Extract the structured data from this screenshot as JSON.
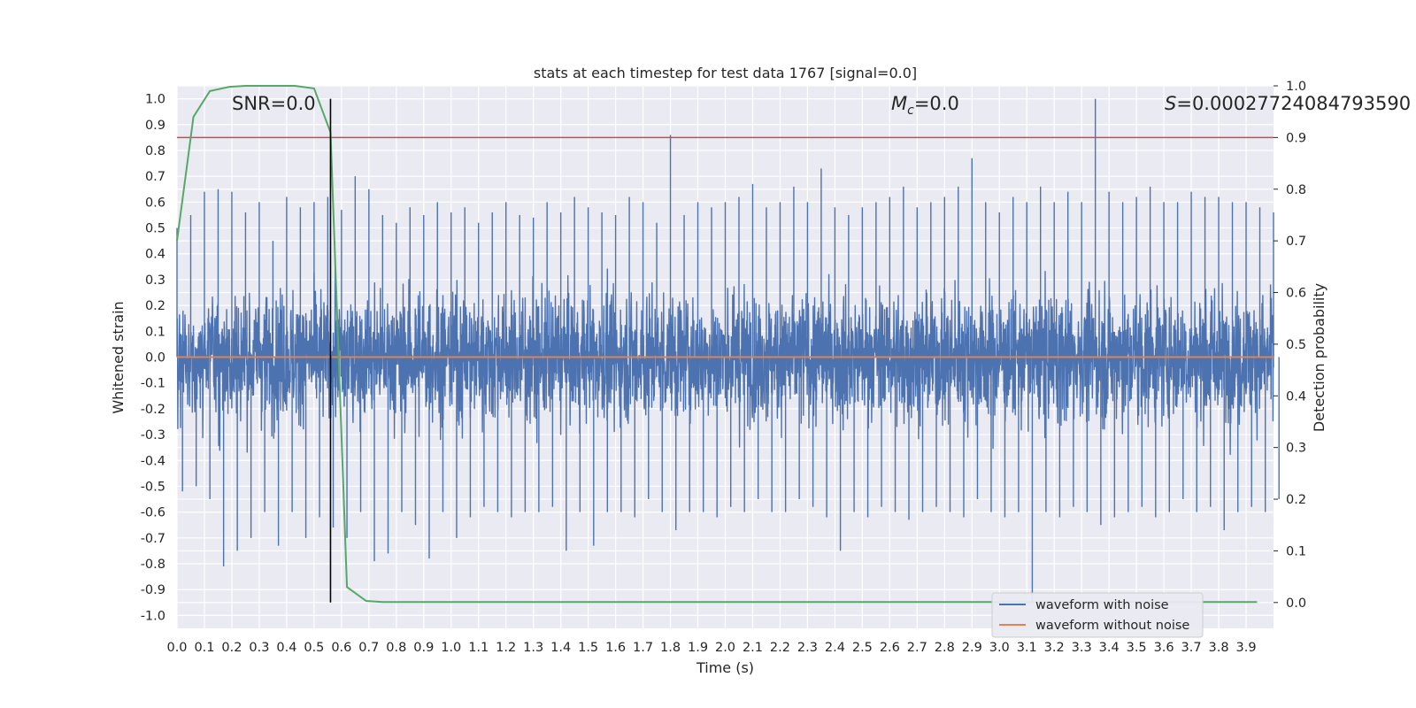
{
  "chart_data": {
    "type": "line",
    "title": "stats at each timestep for test data 1767 [signal=0.0]",
    "xlabel": "Time (s)",
    "ylabel": "Whitened strain",
    "ylabel_right": "Detection probability",
    "xlim": [
      0.0,
      4.0
    ],
    "ylim": [
      -1.05,
      1.05
    ],
    "ylim_right": [
      -0.05,
      1.0
    ],
    "x_ticks": [
      "0.0",
      "0.1",
      "0.2",
      "0.3",
      "0.4",
      "0.5",
      "0.6",
      "0.7",
      "0.8",
      "0.9",
      "1.0",
      "1.1",
      "1.2",
      "1.3",
      "1.4",
      "1.5",
      "1.6",
      "1.7",
      "1.8",
      "1.9",
      "2.0",
      "2.1",
      "2.2",
      "2.3",
      "2.4",
      "2.5",
      "2.6",
      "2.7",
      "2.8",
      "2.9",
      "3.0",
      "3.1",
      "3.2",
      "3.3",
      "3.4",
      "3.5",
      "3.6",
      "3.7",
      "3.8",
      "3.9"
    ],
    "y_ticks": [
      "1.0",
      "0.9",
      "0.8",
      "0.7",
      "0.6",
      "0.5",
      "0.4",
      "0.3",
      "0.2",
      "0.1",
      "0.0",
      "-0.1",
      "-0.2",
      "-0.3",
      "-0.4",
      "-0.5",
      "-0.6",
      "-0.7",
      "-0.8",
      "-0.9",
      "-1.0"
    ],
    "y_ticks_right": [
      "1.0",
      "0.9",
      "0.8",
      "0.7",
      "0.6",
      "0.5",
      "0.4",
      "0.3",
      "0.2",
      "0.1",
      "0.0"
    ],
    "grid": true,
    "legend_position": "bottom-right",
    "annotations": {
      "snr": "SNR=0.0",
      "mc_symbol": "M",
      "mc_sub": "c",
      "mc_value": "=0.0",
      "s_symbol": "S",
      "s_value": "=0.00027724084793590"
    },
    "threshold": 0.9,
    "vertical_marker_x": 0.56,
    "series": [
      {
        "name": "waveform with noise",
        "color": "#4c72b0",
        "axis": "left",
        "envelope_x": [
          0.0,
          0.05,
          0.1,
          0.15,
          0.2,
          0.25,
          0.3,
          0.35,
          0.4,
          0.45,
          0.5,
          0.55,
          0.6,
          0.65,
          0.7,
          0.75,
          0.8,
          0.85,
          0.9,
          0.95,
          1.0,
          1.05,
          1.1,
          1.15,
          1.2,
          1.25,
          1.3,
          1.35,
          1.4,
          1.45,
          1.5,
          1.55,
          1.6,
          1.65,
          1.7,
          1.75,
          1.8,
          1.85,
          1.9,
          1.95,
          2.0,
          2.05,
          2.1,
          2.15,
          2.2,
          2.25,
          2.3,
          2.35,
          2.4,
          2.45,
          2.5,
          2.55,
          2.6,
          2.65,
          2.7,
          2.75,
          2.8,
          2.85,
          2.9,
          2.95,
          3.0,
          3.05,
          3.1,
          3.15,
          3.2,
          3.25,
          3.3,
          3.35,
          3.4,
          3.45,
          3.5,
          3.55,
          3.6,
          3.65,
          3.7,
          3.75,
          3.8,
          3.85,
          3.9,
          3.95,
          4.0
        ],
        "envelope_max": [
          0.5,
          0.55,
          0.64,
          0.65,
          0.64,
          0.56,
          0.6,
          0.45,
          0.62,
          0.58,
          0.6,
          0.62,
          0.57,
          0.7,
          0.65,
          0.55,
          0.52,
          0.58,
          0.55,
          0.6,
          0.56,
          0.58,
          0.52,
          0.56,
          0.6,
          0.55,
          0.54,
          0.6,
          0.56,
          0.62,
          0.58,
          0.56,
          0.55,
          0.62,
          0.6,
          0.52,
          0.86,
          0.55,
          0.6,
          0.58,
          0.6,
          0.62,
          0.67,
          0.58,
          0.6,
          0.66,
          0.6,
          0.73,
          0.58,
          0.55,
          0.58,
          0.6,
          0.62,
          0.66,
          0.58,
          0.6,
          0.62,
          0.66,
          0.77,
          0.6,
          0.56,
          0.62,
          0.6,
          0.66,
          0.6,
          0.64,
          0.6,
          1.0,
          0.64,
          0.6,
          0.62,
          0.66,
          0.6,
          0.6,
          0.64,
          0.62,
          0.62,
          0.6,
          0.6,
          0.58,
          0.56
        ],
        "envelope_min": [
          -0.52,
          -0.5,
          -0.55,
          -0.81,
          -0.75,
          -0.7,
          -0.6,
          -0.73,
          -0.6,
          -0.7,
          -0.62,
          -0.66,
          -0.7,
          -0.6,
          -0.79,
          -0.76,
          -0.6,
          -0.65,
          -0.78,
          -0.6,
          -0.7,
          -0.62,
          -0.58,
          -0.6,
          -0.62,
          -0.6,
          -0.6,
          -0.58,
          -0.75,
          -0.6,
          -0.73,
          -0.6,
          -0.6,
          -0.62,
          -0.55,
          -0.6,
          -0.67,
          -0.6,
          -0.6,
          -0.62,
          -0.58,
          -0.6,
          -0.55,
          -0.6,
          -0.6,
          -0.55,
          -0.58,
          -0.62,
          -0.75,
          -0.6,
          -0.62,
          -0.58,
          -0.6,
          -0.63,
          -0.6,
          -0.58,
          -0.6,
          -0.62,
          -0.55,
          -0.6,
          -0.62,
          -0.6,
          -0.95,
          -0.6,
          -0.62,
          -0.58,
          -0.6,
          -0.65,
          -0.62,
          -0.6,
          -0.58,
          -0.62,
          -0.6,
          -0.55,
          -0.6,
          -0.58,
          -0.67,
          -0.6,
          -0.58,
          -0.6,
          -0.55
        ]
      },
      {
        "name": "waveform without noise",
        "color": "#dd8452",
        "axis": "left",
        "x": [
          0.0,
          4.0
        ],
        "y": [
          0.0,
          0.0
        ]
      },
      {
        "name": "detection probability",
        "color": "#55a868",
        "axis": "right",
        "x": [
          0.0,
          0.06,
          0.12,
          0.19,
          0.25,
          0.31,
          0.37,
          0.43,
          0.5,
          0.56,
          0.62,
          0.69,
          0.75,
          0.81,
          1.0,
          2.0,
          3.0,
          3.94
        ],
        "y": [
          0.7,
          0.94,
          0.99,
          0.998,
          1.0,
          1.0,
          1.0,
          1.0,
          0.995,
          0.91,
          0.03,
          0.003,
          0.001,
          0.001,
          0.001,
          0.001,
          0.001,
          0.001
        ]
      }
    ]
  }
}
